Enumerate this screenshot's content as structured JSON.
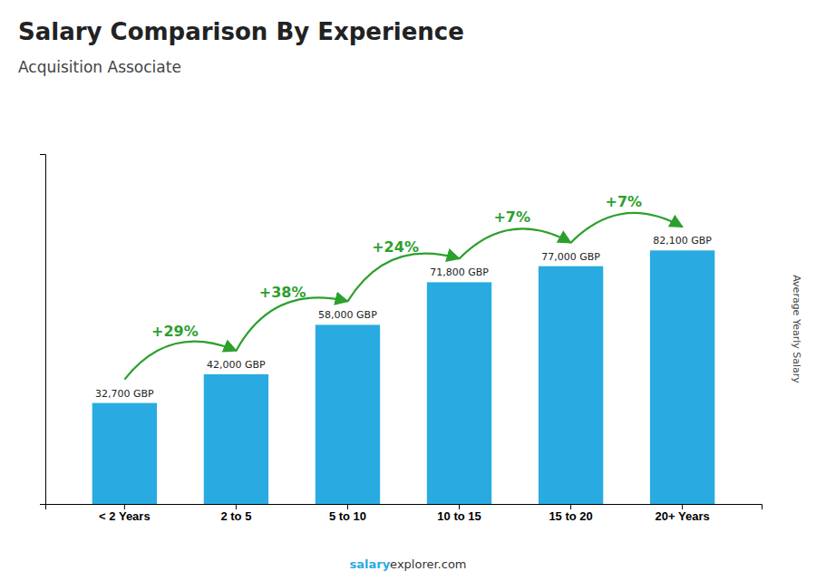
{
  "chart_data": {
    "type": "bar",
    "title": "Salary Comparison By Experience",
    "subtitle": "Acquisition Associate",
    "y_label": "Average Yearly Salary",
    "categories": [
      "< 2 Years",
      "2 to 5",
      "5 to 10",
      "10 to 15",
      "15 to 20",
      "20+ Years"
    ],
    "values": [
      32700,
      42000,
      58000,
      71800,
      77000,
      82100
    ],
    "value_labels": [
      "32,700 GBP",
      "42,000 GBP",
      "58,000 GBP",
      "71,800 GBP",
      "77,000 GBP",
      "82,100 GBP"
    ],
    "data_labels": true,
    "annotations": [
      "+29%",
      "+38%",
      "+24%",
      "+7%",
      "+7%"
    ],
    "footer": [
      "salary",
      "explorer.com"
    ],
    "color": "#29ABE2",
    "ylim": [
      0,
      113298
    ],
    "tick_labels": "x",
    "grid": false
  }
}
